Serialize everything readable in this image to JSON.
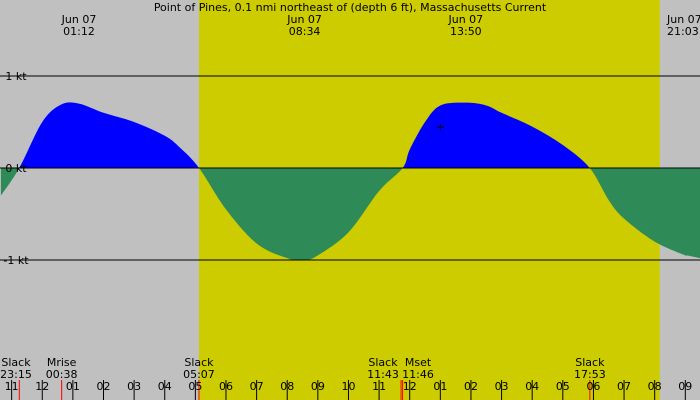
{
  "chart_data": {
    "type": "area",
    "title": "Point of Pines, 0.1 nmi northeast of (depth 6 ft), Massachusetts Current",
    "xlabel": "",
    "ylabel": "",
    "x_unit": "hour of day",
    "x_range": [
      10.62,
      9.48
    ],
    "ylim": [
      -2.0,
      1.45
    ],
    "y_ticks": [
      {
        "value": 1,
        "label": "1 kt"
      },
      {
        "value": 0,
        "label": "0 kt"
      },
      {
        "value": -1,
        "label": "-1 kt"
      }
    ],
    "daylight": {
      "start": "05:07",
      "end": "20:10"
    },
    "top_labels": [
      {
        "date": "Jun 07",
        "time": "01:12",
        "hour": 1.2
      },
      {
        "date": "Jun 07",
        "time": "08:34",
        "hour": 8.567
      },
      {
        "date": "Jun 07",
        "time": "13:50",
        "hour": 13.833
      },
      {
        "date": "Jun 07",
        "time": "21:03",
        "hour": 21.05
      }
    ],
    "series": [
      {
        "x": [
          22.65,
          23.25,
          24.0,
          24.62,
          25.2,
          26.0,
          27.0,
          28.0,
          28.5,
          29.12,
          30.0,
          31.0,
          32.0,
          32.57,
          33.0,
          34.0,
          35.0,
          35.77,
          36.0,
          36.5,
          37.0,
          37.83,
          38.5,
          39.0,
          40.0,
          41.0,
          41.88,
          42.5,
          43.0,
          44.0,
          45.0,
          45.05,
          45.48
        ],
        "y": [
          -0.3,
          0.0,
          0.5,
          0.69,
          0.7,
          0.6,
          0.5,
          0.35,
          0.22,
          0.0,
          -0.45,
          -0.82,
          -0.98,
          -1.0,
          -0.95,
          -0.7,
          -0.25,
          0.0,
          0.2,
          0.5,
          0.68,
          0.71,
          0.68,
          0.6,
          0.45,
          0.25,
          0.0,
          -0.35,
          -0.55,
          -0.8,
          -0.95,
          -0.95,
          -0.98
        ],
        "colors": {
          "flood": "#0000ff",
          "ebb": "#2e8b57"
        }
      }
    ],
    "events": [
      {
        "name": "Slack",
        "time": "23:15",
        "hour": 23.25
      },
      {
        "name": "Mrise",
        "time": "00:38",
        "hour": 24.633
      },
      {
        "name": "Slack",
        "time": "05:07",
        "hour": 29.117
      },
      {
        "name": "Slack",
        "time": "11:43",
        "hour": 35.717
      },
      {
        "name": "Mset",
        "time": "11:46",
        "hour": 35.767
      },
      {
        "name": "Slack",
        "time": "17:53",
        "hour": 41.883
      }
    ],
    "x_tick_labels": [
      "11",
      "12",
      "01",
      "02",
      "03",
      "04",
      "05",
      "06",
      "07",
      "08",
      "09",
      "10",
      "11",
      "12",
      "01",
      "02",
      "03",
      "04",
      "05",
      "06",
      "07",
      "08",
      "09"
    ],
    "x_tick_start_hour": 23,
    "marker": {
      "x": 37.0,
      "y": 0.45,
      "symbol": "+"
    },
    "colors": {
      "night": "#c0c0c0",
      "day": "#cccc00",
      "flood": "#0000ff",
      "ebb": "#2e8b57",
      "tick_red": "#ff0000"
    }
  }
}
